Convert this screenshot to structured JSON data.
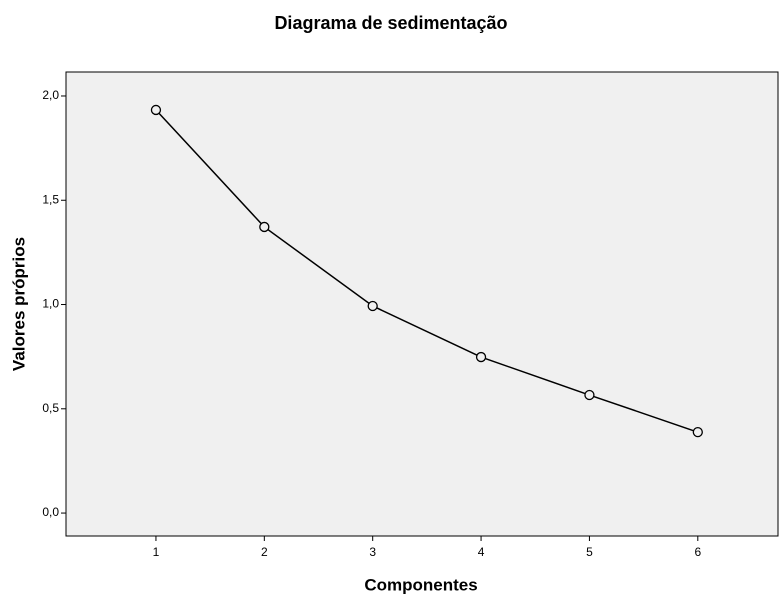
{
  "chart_data": {
    "type": "line",
    "title": "Diagrama de sedimentação",
    "xlabel": "Componentes",
    "ylabel": "Valores próprios",
    "x": [
      1,
      2,
      3,
      4,
      5,
      6
    ],
    "series": [
      {
        "name": "Valores próprios",
        "color": "#000000",
        "marker": "o",
        "values": [
          1.933,
          1.372,
          0.993,
          0.748,
          0.566,
          0.388
        ]
      }
    ],
    "xlim": [
      0.17,
      6.74
    ],
    "xticks": [
      1,
      2,
      3,
      4,
      5,
      6
    ],
    "ylim": [
      -0.11,
      2.115
    ],
    "yticks": [
      {
        "value": 0,
        "label": "0,0"
      },
      {
        "value": 0.5,
        "label": "0,5"
      },
      {
        "value": 1,
        "label": "1,0"
      },
      {
        "value": 1.5,
        "label": "1,5"
      },
      {
        "value": 2,
        "label": "2,0"
      }
    ],
    "background": "#f0f0f0"
  }
}
